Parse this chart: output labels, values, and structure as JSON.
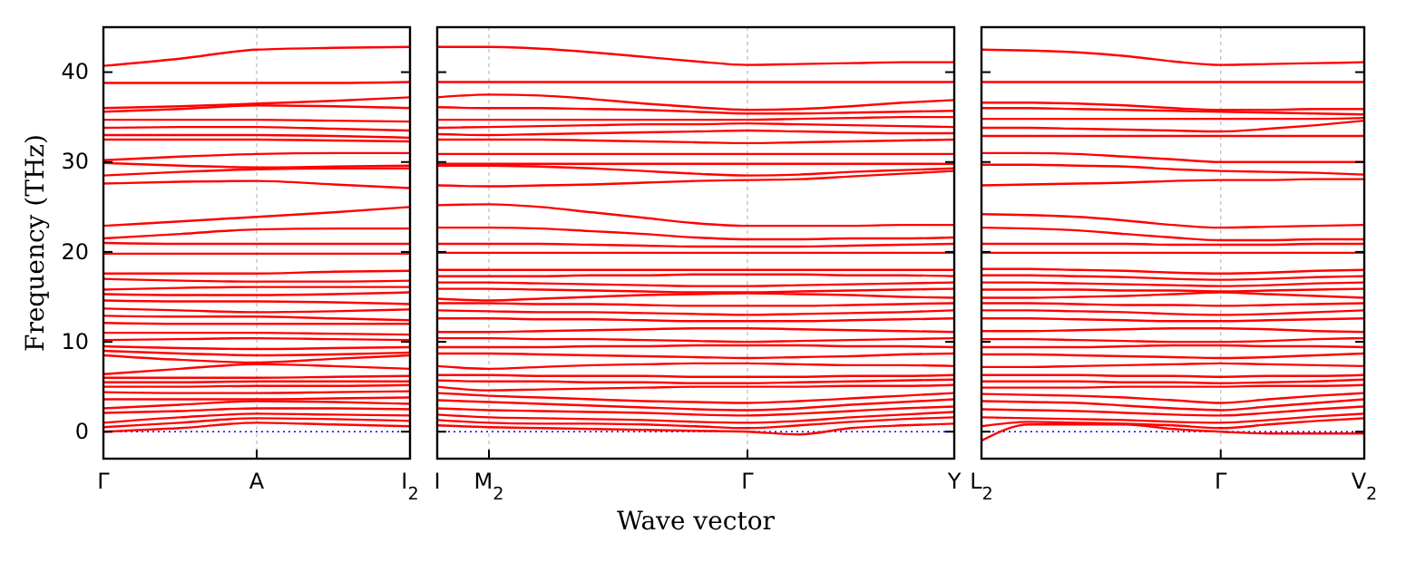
{
  "chart_data": [
    {
      "type": "line",
      "ylabel": "Frequency (THz)",
      "categories": [
        "Γ",
        null,
        "A",
        null,
        "I$_{2}$"
      ],
      "ylim": [
        -3,
        45
      ],
      "yticks": [
        0,
        10,
        20,
        30,
        40
      ],
      "ref_lines": [
        {
          "axis": "y",
          "value": 0,
          "color": "#0000ff",
          "line_style": "dotted"
        },
        {
          "axis": "x",
          "value": "A",
          "color": "#bbbbbb",
          "line_style": "dashed"
        }
      ],
      "series": [
        {
          "color": "#ff0000",
          "values": [
            40.7,
            41.5,
            42.5,
            42.7,
            42.8
          ]
        },
        {
          "color": "#ff0000",
          "values": [
            38.8,
            38.8,
            38.8,
            38.8,
            38.9
          ]
        },
        {
          "color": "#ff0000",
          "values": [
            36.0,
            36.2,
            36.5,
            36.8,
            37.2
          ]
        },
        {
          "color": "#ff0000",
          "values": [
            35.6,
            35.9,
            36.3,
            36.2,
            36.0
          ]
        },
        {
          "color": "#ff0000",
          "values": [
            34.7,
            34.7,
            34.7,
            34.6,
            34.5
          ]
        },
        {
          "color": "#ff0000",
          "values": [
            33.8,
            33.9,
            33.9,
            33.7,
            33.5
          ]
        },
        {
          "color": "#ff0000",
          "values": [
            33.0,
            33.0,
            33.0,
            32.9,
            32.7
          ]
        },
        {
          "color": "#ff0000",
          "values": [
            32.5,
            32.5,
            32.5,
            32.4,
            32.3
          ]
        },
        {
          "color": "#ff0000",
          "values": [
            30.2,
            30.6,
            30.9,
            31.0,
            31.0
          ]
        },
        {
          "color": "#ff0000",
          "values": [
            29.9,
            29.6,
            29.4,
            29.5,
            29.6
          ]
        },
        {
          "color": "#ff0000",
          "values": [
            28.5,
            28.9,
            29.2,
            29.3,
            29.3
          ]
        },
        {
          "color": "#ff0000",
          "values": [
            27.6,
            27.8,
            27.9,
            27.5,
            27.1
          ]
        },
        {
          "color": "#ff0000",
          "values": [
            22.9,
            23.4,
            23.9,
            24.4,
            25.0
          ]
        },
        {
          "color": "#ff0000",
          "values": [
            21.5,
            22.0,
            22.5,
            22.6,
            22.6
          ]
        },
        {
          "color": "#ff0000",
          "values": [
            21.0,
            20.9,
            20.9,
            20.9,
            20.9
          ]
        },
        {
          "color": "#ff0000",
          "values": [
            19.8,
            19.8,
            19.8,
            19.8,
            19.8
          ]
        },
        {
          "color": "#ff0000",
          "values": [
            17.6,
            17.6,
            17.6,
            17.8,
            17.9
          ]
        },
        {
          "color": "#ff0000",
          "values": [
            17.0,
            16.8,
            16.7,
            16.7,
            16.8
          ]
        },
        {
          "color": "#ff0000",
          "values": [
            15.8,
            16.0,
            16.1,
            16.1,
            16.1
          ]
        },
        {
          "color": "#ff0000",
          "values": [
            15.3,
            15.2,
            15.2,
            15.3,
            15.5
          ]
        },
        {
          "color": "#ff0000",
          "values": [
            14.6,
            14.5,
            14.5,
            14.4,
            14.2
          ]
        },
        {
          "color": "#ff0000",
          "values": [
            13.7,
            13.5,
            13.3,
            13.4,
            13.6
          ]
        },
        {
          "color": "#ff0000",
          "values": [
            12.9,
            12.8,
            12.8,
            12.6,
            12.4
          ]
        },
        {
          "color": "#ff0000",
          "values": [
            12.1,
            12.0,
            12.0,
            12.0,
            12.0
          ]
        },
        {
          "color": "#ff0000",
          "values": [
            11.0,
            11.0,
            11.0,
            10.9,
            10.8
          ]
        },
        {
          "color": "#ff0000",
          "values": [
            10.2,
            10.3,
            10.4,
            10.3,
            10.2
          ]
        },
        {
          "color": "#ff0000",
          "values": [
            9.5,
            9.3,
            9.2,
            9.3,
            9.4
          ]
        },
        {
          "color": "#ff0000",
          "values": [
            9.0,
            8.7,
            8.5,
            8.6,
            8.8
          ]
        },
        {
          "color": "#ff0000",
          "values": [
            8.5,
            8.0,
            7.7,
            8.1,
            8.5
          ]
        },
        {
          "color": "#ff0000",
          "values": [
            6.4,
            7.0,
            7.5,
            7.3,
            7.0
          ]
        },
        {
          "color": "#ff0000",
          "values": [
            6.0,
            6.0,
            6.0,
            6.1,
            6.2
          ]
        },
        {
          "color": "#ff0000",
          "values": [
            5.5,
            5.5,
            5.6,
            5.6,
            5.6
          ]
        },
        {
          "color": "#ff0000",
          "values": [
            5.0,
            5.0,
            5.1,
            5.1,
            5.2
          ]
        },
        {
          "color": "#ff0000",
          "values": [
            4.4,
            4.3,
            4.3,
            4.4,
            4.5
          ]
        },
        {
          "color": "#ff0000",
          "values": [
            3.6,
            3.6,
            3.6,
            3.7,
            3.8
          ]
        },
        {
          "color": "#ff0000",
          "values": [
            2.6,
            3.0,
            3.4,
            3.3,
            3.1
          ]
        },
        {
          "color": "#ff0000",
          "values": [
            2.1,
            2.3,
            2.6,
            2.6,
            2.5
          ]
        },
        {
          "color": "#ff0000",
          "values": [
            1.0,
            1.6,
            2.0,
            1.9,
            1.8
          ]
        },
        {
          "color": "#ff0000",
          "values": [
            0.5,
            1.0,
            1.5,
            1.4,
            1.2
          ]
        },
        {
          "color": "#ff0000",
          "values": [
            0,
            0.4,
            1.0,
            0.8,
            0.6
          ]
        }
      ]
    },
    {
      "type": "line",
      "xlabel": "Wave vector",
      "categories": [
        "I",
        "M$_{2}$",
        null,
        null,
        null,
        null,
        "Γ",
        null,
        null,
        null,
        "Y"
      ],
      "ylim": [
        -3,
        45
      ],
      "yticks": [
        0,
        10,
        20,
        30,
        40
      ],
      "tick_labels": "x",
      "ref_lines": [
        {
          "axis": "y",
          "value": 0,
          "color": "#0000ff",
          "line_style": "dotted"
        },
        {
          "axis": "x",
          "value": "M$_{2}$",
          "color": "#bbbbbb",
          "line_style": "dashed"
        },
        {
          "axis": "x",
          "value": "Γ",
          "color": "#bbbbbb",
          "line_style": "dashed"
        }
      ],
      "series": [
        {
          "color": "#ff0000",
          "values": [
            42.8,
            42.8,
            42.6,
            42.2,
            41.7,
            41.2,
            40.8,
            40.9,
            41.0,
            41.1,
            41.1
          ]
        },
        {
          "color": "#ff0000",
          "values": [
            38.9,
            38.9,
            38.9,
            38.9,
            38.9,
            38.9,
            38.9,
            38.9,
            38.9,
            38.9,
            38.9
          ]
        },
        {
          "color": "#ff0000",
          "values": [
            37.2,
            37.5,
            37.4,
            37.0,
            36.5,
            36.1,
            35.8,
            35.9,
            36.2,
            36.6,
            36.9
          ]
        },
        {
          "color": "#ff0000",
          "values": [
            36.1,
            36.0,
            36.0,
            35.9,
            35.8,
            35.6,
            35.4,
            35.4,
            35.5,
            35.6,
            35.7
          ]
        },
        {
          "color": "#ff0000",
          "values": [
            34.7,
            34.7,
            34.7,
            34.7,
            34.7,
            34.7,
            34.7,
            34.8,
            34.9,
            35.0,
            35.0
          ]
        },
        {
          "color": "#ff0000",
          "values": [
            33.8,
            33.9,
            34.0,
            34.1,
            34.2,
            34.2,
            34.3,
            34.2,
            34.1,
            34.0,
            33.9
          ]
        },
        {
          "color": "#ff0000",
          "values": [
            33.1,
            33.0,
            33.1,
            33.2,
            33.3,
            33.4,
            33.5,
            33.4,
            33.3,
            33.2,
            33.2
          ]
        },
        {
          "color": "#ff0000",
          "values": [
            32.5,
            32.5,
            32.5,
            32.4,
            32.3,
            32.2,
            32.1,
            32.2,
            32.3,
            32.4,
            32.5
          ]
        },
        {
          "color": "#ff0000",
          "values": [
            30.9,
            30.9,
            30.9,
            30.9,
            30.9,
            30.9,
            30.9,
            30.9,
            30.9,
            30.9,
            30.9
          ]
        },
        {
          "color": "#ff0000",
          "values": [
            29.8,
            29.8,
            29.8,
            29.8,
            29.8,
            29.8,
            29.8,
            29.8,
            29.8,
            29.8,
            29.8
          ]
        },
        {
          "color": "#ff0000",
          "values": [
            29.6,
            29.6,
            29.5,
            29.3,
            29.0,
            28.7,
            28.5,
            28.6,
            28.9,
            29.1,
            29.3
          ]
        },
        {
          "color": "#ff0000",
          "values": [
            27.4,
            27.3,
            27.4,
            27.5,
            27.7,
            27.9,
            28.0,
            28.1,
            28.4,
            28.7,
            29.0
          ]
        },
        {
          "color": "#ff0000",
          "values": [
            25.2,
            25.3,
            25.0,
            24.4,
            23.8,
            23.2,
            22.9,
            22.9,
            22.9,
            23.0,
            23.0
          ]
        },
        {
          "color": "#ff0000",
          "values": [
            22.7,
            22.7,
            22.6,
            22.3,
            22.0,
            21.6,
            21.4,
            21.4,
            21.5,
            21.5,
            21.6
          ]
        },
        {
          "color": "#ff0000",
          "values": [
            20.9,
            20.9,
            20.9,
            20.8,
            20.7,
            20.6,
            20.6,
            20.6,
            20.7,
            20.8,
            20.9
          ]
        },
        {
          "color": "#ff0000",
          "values": [
            19.9,
            19.9,
            19.9,
            19.9,
            19.9,
            19.9,
            19.9,
            19.9,
            19.9,
            19.9,
            19.9
          ]
        },
        {
          "color": "#ff0000",
          "values": [
            18.0,
            18.0,
            18.0,
            18.0,
            18.0,
            18.0,
            18.0,
            18.0,
            18.0,
            18.0,
            18.0
          ]
        },
        {
          "color": "#ff0000",
          "values": [
            17.3,
            17.3,
            17.3,
            17.4,
            17.4,
            17.5,
            17.5,
            17.5,
            17.4,
            17.4,
            17.3
          ]
        },
        {
          "color": "#ff0000",
          "values": [
            16.6,
            16.6,
            16.5,
            16.4,
            16.3,
            16.2,
            16.2,
            16.3,
            16.4,
            16.5,
            16.6
          ]
        },
        {
          "color": "#ff0000",
          "values": [
            15.9,
            15.9,
            15.8,
            15.7,
            15.6,
            15.5,
            15.5,
            15.6,
            15.7,
            15.8,
            15.9
          ]
        },
        {
          "color": "#ff0000",
          "values": [
            14.8,
            14.6,
            14.8,
            15.0,
            15.2,
            15.3,
            15.4,
            15.3,
            15.2,
            15.0,
            14.9
          ]
        },
        {
          "color": "#ff0000",
          "values": [
            14.3,
            14.3,
            14.2,
            14.2,
            14.1,
            14.0,
            14.0,
            14.0,
            14.1,
            14.2,
            14.3
          ]
        },
        {
          "color": "#ff0000",
          "values": [
            13.5,
            13.4,
            13.3,
            13.3,
            13.2,
            13.1,
            13.0,
            13.1,
            13.2,
            13.3,
            13.5
          ]
        },
        {
          "color": "#ff0000",
          "values": [
            12.6,
            12.6,
            12.5,
            12.5,
            12.4,
            12.3,
            12.3,
            12.3,
            12.4,
            12.5,
            12.6
          ]
        },
        {
          "color": "#ff0000",
          "values": [
            11.1,
            11.1,
            11.2,
            11.3,
            11.4,
            11.5,
            11.5,
            11.4,
            11.3,
            11.2,
            11.1
          ]
        },
        {
          "color": "#ff0000",
          "values": [
            10.4,
            10.4,
            10.3,
            10.3,
            10.2,
            10.1,
            10.0,
            10.1,
            10.2,
            10.3,
            10.4
          ]
        },
        {
          "color": "#ff0000",
          "values": [
            9.4,
            9.4,
            9.4,
            9.5,
            9.5,
            9.6,
            9.6,
            9.6,
            9.5,
            9.5,
            9.4
          ]
        },
        {
          "color": "#ff0000",
          "values": [
            8.7,
            8.7,
            8.6,
            8.5,
            8.4,
            8.3,
            8.2,
            8.3,
            8.4,
            8.6,
            8.7
          ]
        },
        {
          "color": "#ff0000",
          "values": [
            7.3,
            7.0,
            7.2,
            7.4,
            7.5,
            7.6,
            7.6,
            7.5,
            7.4,
            7.4,
            7.3
          ]
        },
        {
          "color": "#ff0000",
          "values": [
            6.3,
            6.3,
            6.2,
            6.2,
            6.2,
            6.1,
            6.1,
            6.1,
            6.2,
            6.2,
            6.3
          ]
        },
        {
          "color": "#ff0000",
          "values": [
            5.7,
            5.6,
            5.6,
            5.5,
            5.5,
            5.4,
            5.4,
            5.5,
            5.6,
            5.7,
            5.8
          ]
        },
        {
          "color": "#ff0000",
          "values": [
            5.0,
            4.6,
            4.7,
            4.8,
            4.9,
            5.0,
            5.0,
            5.0,
            5.1,
            5.1,
            5.2
          ]
        },
        {
          "color": "#ff0000",
          "values": [
            4.3,
            4.0,
            3.8,
            3.6,
            3.4,
            3.3,
            3.2,
            3.4,
            3.7,
            4.0,
            4.3
          ]
        },
        {
          "color": "#ff0000",
          "values": [
            3.5,
            3.3,
            3.1,
            2.9,
            2.7,
            2.5,
            2.4,
            2.6,
            3.0,
            3.3,
            3.6
          ]
        },
        {
          "color": "#ff0000",
          "values": [
            2.6,
            2.4,
            2.3,
            2.2,
            2.1,
            1.9,
            1.8,
            2.0,
            2.3,
            2.6,
            2.8
          ]
        },
        {
          "color": "#ff0000",
          "values": [
            1.9,
            1.6,
            1.5,
            1.4,
            1.3,
            1.1,
            1.0,
            1.2,
            1.6,
            1.9,
            2.2
          ]
        },
        {
          "color": "#ff0000",
          "values": [
            1.3,
            1.0,
            0.9,
            0.9,
            0.8,
            0.6,
            0.4,
            0.7,
            1.1,
            1.4,
            1.6
          ]
        },
        {
          "color": "#ff0000",
          "values": [
            0.7,
            0.5,
            0.4,
            0.3,
            0.2,
            0.1,
            0,
            -0.3,
            0.4,
            0.7,
            0.9
          ]
        }
      ]
    },
    {
      "type": "line",
      "categories": [
        "L$_{2}$",
        null,
        null,
        null,
        null,
        "Γ",
        null,
        null,
        "V$_{2}$"
      ],
      "ylim": [
        -3,
        45
      ],
      "yticks": [
        0,
        10,
        20,
        30,
        40
      ],
      "tick_labels": "x",
      "ref_lines": [
        {
          "axis": "y",
          "value": 0,
          "color": "#0000ff",
          "line_style": "dotted"
        },
        {
          "axis": "x",
          "value": "Γ",
          "color": "#bbbbbb",
          "line_style": "dashed"
        }
      ],
      "series": [
        {
          "color": "#ff0000",
          "values": [
            42.5,
            42.4,
            42.2,
            41.8,
            41.2,
            40.8,
            40.9,
            41.0,
            41.1
          ]
        },
        {
          "color": "#ff0000",
          "values": [
            38.9,
            38.9,
            38.9,
            38.9,
            38.9,
            38.9,
            38.9,
            38.9,
            38.9
          ]
        },
        {
          "color": "#ff0000",
          "values": [
            36.6,
            36.6,
            36.5,
            36.3,
            36.0,
            35.8,
            35.8,
            35.9,
            35.9
          ]
        },
        {
          "color": "#ff0000",
          "values": [
            36.0,
            36.0,
            35.9,
            35.8,
            35.7,
            35.6,
            35.5,
            35.4,
            35.3
          ]
        },
        {
          "color": "#ff0000",
          "values": [
            34.8,
            34.8,
            34.8,
            34.8,
            34.8,
            34.8,
            34.8,
            34.8,
            34.9
          ]
        },
        {
          "color": "#ff0000",
          "values": [
            33.8,
            33.8,
            33.7,
            33.6,
            33.5,
            33.4,
            33.7,
            34.1,
            34.6
          ]
        },
        {
          "color": "#ff0000",
          "values": [
            32.9,
            32.9,
            32.9,
            32.9,
            32.9,
            32.9,
            32.9,
            32.9,
            32.9
          ]
        },
        {
          "color": "#ff0000",
          "values": [
            31.0,
            31.0,
            30.9,
            30.6,
            30.3,
            30.0,
            30.0,
            30.0,
            30.0
          ]
        },
        {
          "color": "#ff0000",
          "values": [
            29.7,
            29.7,
            29.6,
            29.5,
            29.2,
            29.0,
            28.9,
            28.8,
            28.6
          ]
        },
        {
          "color": "#ff0000",
          "values": [
            27.4,
            27.5,
            27.6,
            27.7,
            27.9,
            28.0,
            28.0,
            28.1,
            28.1
          ]
        },
        {
          "color": "#ff0000",
          "values": [
            24.2,
            24.1,
            23.9,
            23.5,
            23.0,
            22.7,
            22.8,
            22.9,
            23.0
          ]
        },
        {
          "color": "#ff0000",
          "values": [
            22.7,
            22.6,
            22.4,
            22.0,
            21.6,
            21.3,
            21.3,
            21.4,
            21.4
          ]
        },
        {
          "color": "#ff0000",
          "values": [
            20.9,
            20.9,
            20.9,
            20.9,
            20.8,
            20.8,
            20.8,
            20.9,
            20.9
          ]
        },
        {
          "color": "#ff0000",
          "values": [
            19.9,
            19.9,
            19.9,
            19.9,
            19.9,
            19.9,
            19.9,
            19.9,
            19.9
          ]
        },
        {
          "color": "#ff0000",
          "values": [
            18.1,
            18.1,
            18.0,
            17.9,
            17.7,
            17.6,
            17.7,
            17.9,
            18.0
          ]
        },
        {
          "color": "#ff0000",
          "values": [
            17.4,
            17.4,
            17.3,
            17.2,
            17.0,
            16.9,
            17.0,
            17.2,
            17.3
          ]
        },
        {
          "color": "#ff0000",
          "values": [
            16.6,
            16.6,
            16.5,
            16.4,
            16.3,
            16.2,
            16.3,
            16.5,
            16.6
          ]
        },
        {
          "color": "#ff0000",
          "values": [
            15.8,
            15.8,
            15.8,
            15.7,
            15.7,
            15.6,
            15.7,
            15.8,
            15.9
          ]
        },
        {
          "color": "#ff0000",
          "values": [
            14.9,
            14.9,
            15.0,
            15.1,
            15.3,
            15.5,
            15.3,
            15.1,
            14.9
          ]
        },
        {
          "color": "#ff0000",
          "values": [
            14.3,
            14.3,
            14.2,
            14.1,
            14.1,
            14.0,
            14.1,
            14.2,
            14.3
          ]
        },
        {
          "color": "#ff0000",
          "values": [
            13.5,
            13.5,
            13.4,
            13.3,
            13.1,
            13.0,
            13.1,
            13.3,
            13.5
          ]
        },
        {
          "color": "#ff0000",
          "values": [
            12.6,
            12.6,
            12.5,
            12.4,
            12.3,
            12.3,
            12.4,
            12.5,
            12.6
          ]
        },
        {
          "color": "#ff0000",
          "values": [
            11.2,
            11.2,
            11.3,
            11.4,
            11.5,
            11.5,
            11.4,
            11.2,
            11.1
          ]
        },
        {
          "color": "#ff0000",
          "values": [
            10.3,
            10.3,
            10.2,
            10.1,
            10.0,
            10.0,
            10.1,
            10.3,
            10.4
          ]
        },
        {
          "color": "#ff0000",
          "values": [
            9.4,
            9.4,
            9.4,
            9.5,
            9.6,
            9.6,
            9.5,
            9.5,
            9.4
          ]
        },
        {
          "color": "#ff0000",
          "values": [
            8.6,
            8.6,
            8.5,
            8.4,
            8.3,
            8.2,
            8.3,
            8.5,
            8.7
          ]
        },
        {
          "color": "#ff0000",
          "values": [
            7.2,
            7.2,
            7.3,
            7.4,
            7.5,
            7.6,
            7.5,
            7.4,
            7.3
          ]
        },
        {
          "color": "#ff0000",
          "values": [
            6.3,
            6.3,
            6.3,
            6.2,
            6.2,
            6.1,
            6.2,
            6.2,
            6.3
          ]
        },
        {
          "color": "#ff0000",
          "values": [
            5.6,
            5.6,
            5.6,
            5.5,
            5.5,
            5.4,
            5.5,
            5.6,
            5.8
          ]
        },
        {
          "color": "#ff0000",
          "values": [
            4.9,
            4.9,
            4.9,
            5.0,
            5.0,
            5.0,
            5.1,
            5.1,
            5.2
          ]
        },
        {
          "color": "#ff0000",
          "values": [
            4.2,
            4.1,
            4.0,
            3.8,
            3.5,
            3.2,
            3.6,
            4.0,
            4.3
          ]
        },
        {
          "color": "#ff0000",
          "values": [
            3.4,
            3.3,
            3.2,
            2.9,
            2.6,
            2.4,
            2.8,
            3.2,
            3.6
          ]
        },
        {
          "color": "#ff0000",
          "values": [
            2.5,
            2.4,
            2.3,
            2.1,
            1.9,
            1.8,
            2.1,
            2.5,
            2.8
          ]
        },
        {
          "color": "#ff0000",
          "values": [
            1.6,
            1.5,
            1.4,
            1.3,
            1.1,
            1.0,
            1.3,
            1.7,
            2.0
          ]
        },
        {
          "color": "#ff0000",
          "values": [
            0.6,
            1.1,
            1.0,
            0.9,
            0.7,
            0.4,
            0.8,
            1.2,
            1.5
          ]
        },
        {
          "color": "#ff0000",
          "values": [
            -1.0,
            0.8,
            0.8,
            0.8,
            0.3,
            0,
            -0.2,
            -0.2,
            -0.2
          ]
        }
      ]
    }
  ]
}
